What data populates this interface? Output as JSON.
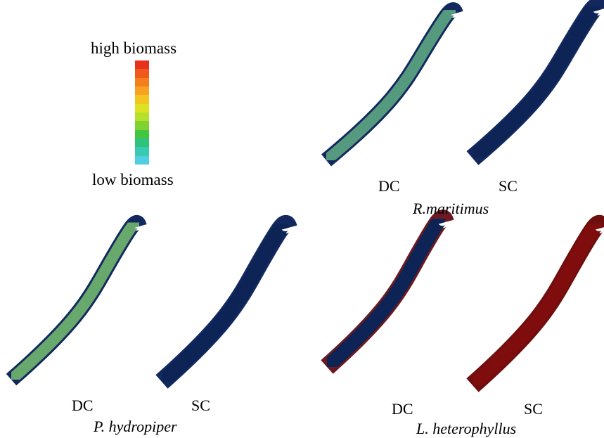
{
  "legend": {
    "high_label": "high biomass",
    "low_label": "low biomass",
    "scale_colors": [
      "#e8321e",
      "#ef5a1c",
      "#f57f1e",
      "#f8a21f",
      "#f3c520",
      "#dde223",
      "#b6e02a",
      "#7fd330",
      "#42c640",
      "#2fc27c",
      "#38cbb2",
      "#4fcfe0"
    ]
  },
  "panels": [
    {
      "species": "R.maritimus",
      "dc_label": "DC",
      "sc_label": "SC",
      "dc_fill": "#5fa88a",
      "sc_fill": "#13295e"
    },
    {
      "species": "P. hydropiper",
      "dc_label": "DC",
      "sc_label": "SC",
      "dc_fill": "#72b877",
      "sc_fill": "#13295e"
    },
    {
      "species": "L. heterophyllus",
      "dc_label": "DC",
      "sc_label": "SC",
      "dc_fill": "#13295e",
      "sc_fill": "#8c1414"
    }
  ]
}
